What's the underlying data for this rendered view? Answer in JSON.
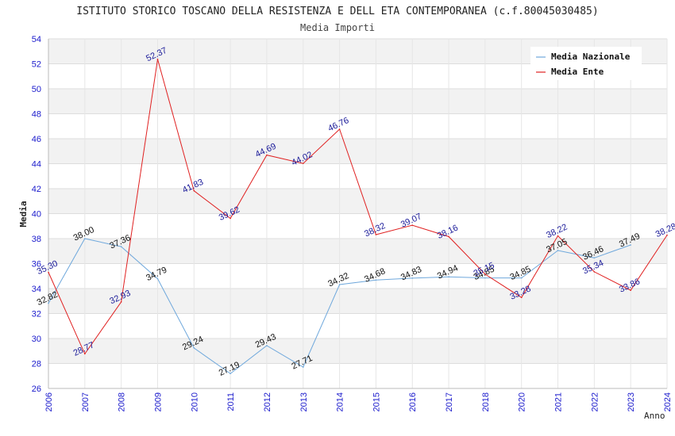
{
  "chart_data": {
    "type": "line",
    "title": "ISTITUTO STORICO TOSCANO DELLA RESISTENZA E DELL ETA CONTEMPORANEA (c.f.80045030485)",
    "subtitle": "Media Importi",
    "xlabel": "Anno",
    "ylabel": "Media",
    "ylim": [
      26,
      54
    ],
    "yticks": [
      26,
      28,
      30,
      32,
      34,
      36,
      38,
      40,
      42,
      44,
      46,
      48,
      50,
      52,
      54
    ],
    "categories": [
      "2006",
      "2007",
      "2008",
      "2009",
      "2010",
      "2011",
      "2012",
      "2013",
      "2014",
      "2015",
      "2016",
      "2017",
      "2018",
      "2020",
      "2021",
      "2022",
      "2023",
      "2024"
    ],
    "legend_position": "top-right",
    "series": [
      {
        "name": "Media Nazionale",
        "color": "#6fa8dc",
        "values": [
          32.82,
          38.0,
          37.36,
          34.79,
          29.24,
          27.19,
          29.43,
          27.71,
          34.32,
          34.68,
          34.83,
          34.94,
          34.85,
          34.85,
          37.05,
          36.46,
          37.49,
          null
        ],
        "labels": [
          "32.82",
          "38.00",
          "37.36",
          "34.79",
          "29.24",
          "27.19",
          "29.43",
          "27.71",
          "34.32",
          "34.68",
          "34.83",
          "34.94",
          "34.85",
          "34.85",
          "37.05",
          "36.46",
          "37.49",
          ""
        ]
      },
      {
        "name": "Media Ente",
        "color": "#e02020",
        "values": [
          35.3,
          28.77,
          32.93,
          52.37,
          41.83,
          39.62,
          44.69,
          44.02,
          46.76,
          38.32,
          39.07,
          38.16,
          35.15,
          33.28,
          38.22,
          35.34,
          33.86,
          38.28
        ],
        "labels": [
          "35.30",
          "28.77",
          "32.93",
          "52.37",
          "41.83",
          "39.62",
          "44.69",
          "44.02",
          "46.76",
          "38.32",
          "39.07",
          "38.16",
          "35.15",
          "33.28",
          "38.22",
          "35.34",
          "33.86",
          "38.28"
        ]
      }
    ]
  }
}
